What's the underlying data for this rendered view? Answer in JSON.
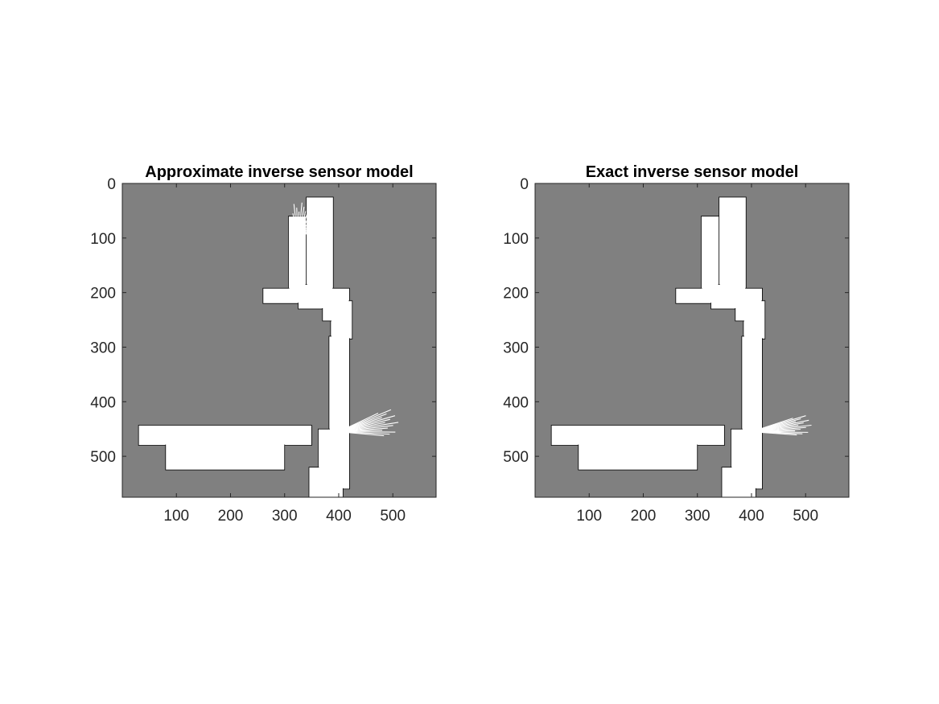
{
  "colors": {
    "unknown": "#808080",
    "free": "#ffffff",
    "occupied": "#000000",
    "axis": "#262626"
  },
  "chart_data": [
    {
      "type": "heatmap",
      "title": "Approximate inverse sensor model",
      "xlabel": "",
      "ylabel": "",
      "xticks": [
        100,
        200,
        300,
        400,
        500
      ],
      "yticks": [
        0,
        100,
        200,
        300,
        400,
        500
      ],
      "xlim": [
        0,
        580
      ],
      "ylim": [
        0,
        575
      ],
      "y_reversed": true,
      "colormap": "gray",
      "background_value": "unknown",
      "free_regions": [
        {
          "x": [
            340,
            390
          ],
          "y": [
            25,
            200
          ]
        },
        {
          "x": [
            307,
            340
          ],
          "y": [
            60,
            200
          ]
        },
        {
          "x": [
            260,
            420
          ],
          "y": [
            192,
            220
          ]
        },
        {
          "x": [
            325,
            380
          ],
          "y": [
            185,
            230
          ]
        },
        {
          "x": [
            385,
            425
          ],
          "y": [
            215,
            285
          ]
        },
        {
          "x": [
            370,
            400
          ],
          "y": [
            215,
            252
          ]
        },
        {
          "x": [
            382,
            420
          ],
          "y": [
            280,
            560
          ]
        },
        {
          "x": [
            362,
            402
          ],
          "y": [
            450,
            600
          ]
        },
        {
          "x": [
            345,
            408
          ],
          "y": [
            520,
            600
          ]
        },
        {
          "x": [
            30,
            350
          ],
          "y": [
            443,
            480
          ]
        },
        {
          "x": [
            80,
            300
          ],
          "y": [
            470,
            525
          ]
        }
      ],
      "ray_fans": [
        {
          "origin": [
            325,
            110
          ],
          "angle_range_deg": [
            -100,
            -50
          ],
          "length": 80
        },
        {
          "origin": [
            400,
            455
          ],
          "angle_range_deg": [
            -25,
            5
          ],
          "length": 115
        }
      ]
    },
    {
      "type": "heatmap",
      "title": "Exact inverse sensor model",
      "xlabel": "",
      "ylabel": "",
      "xticks": [
        100,
        200,
        300,
        400,
        500
      ],
      "yticks": [
        0,
        100,
        200,
        300,
        400,
        500
      ],
      "xlim": [
        0,
        580
      ],
      "ylim": [
        0,
        575
      ],
      "y_reversed": true,
      "colormap": "gray",
      "background_value": "unknown",
      "free_regions": [
        {
          "x": [
            340,
            390
          ],
          "y": [
            25,
            200
          ]
        },
        {
          "x": [
            307,
            340
          ],
          "y": [
            60,
            200
          ]
        },
        {
          "x": [
            260,
            420
          ],
          "y": [
            192,
            220
          ]
        },
        {
          "x": [
            325,
            380
          ],
          "y": [
            185,
            230
          ]
        },
        {
          "x": [
            385,
            425
          ],
          "y": [
            215,
            285
          ]
        },
        {
          "x": [
            370,
            400
          ],
          "y": [
            215,
            252
          ]
        },
        {
          "x": [
            382,
            420
          ],
          "y": [
            280,
            560
          ]
        },
        {
          "x": [
            362,
            402
          ],
          "y": [
            450,
            600
          ]
        },
        {
          "x": [
            345,
            408
          ],
          "y": [
            520,
            600
          ]
        },
        {
          "x": [
            30,
            350
          ],
          "y": [
            443,
            480
          ]
        },
        {
          "x": [
            80,
            300
          ],
          "y": [
            470,
            525
          ]
        }
      ],
      "ray_fans": [
        {
          "origin": [
            400,
            455
          ],
          "angle_range_deg": [
            -18,
            4
          ],
          "length": 115
        }
      ]
    }
  ]
}
